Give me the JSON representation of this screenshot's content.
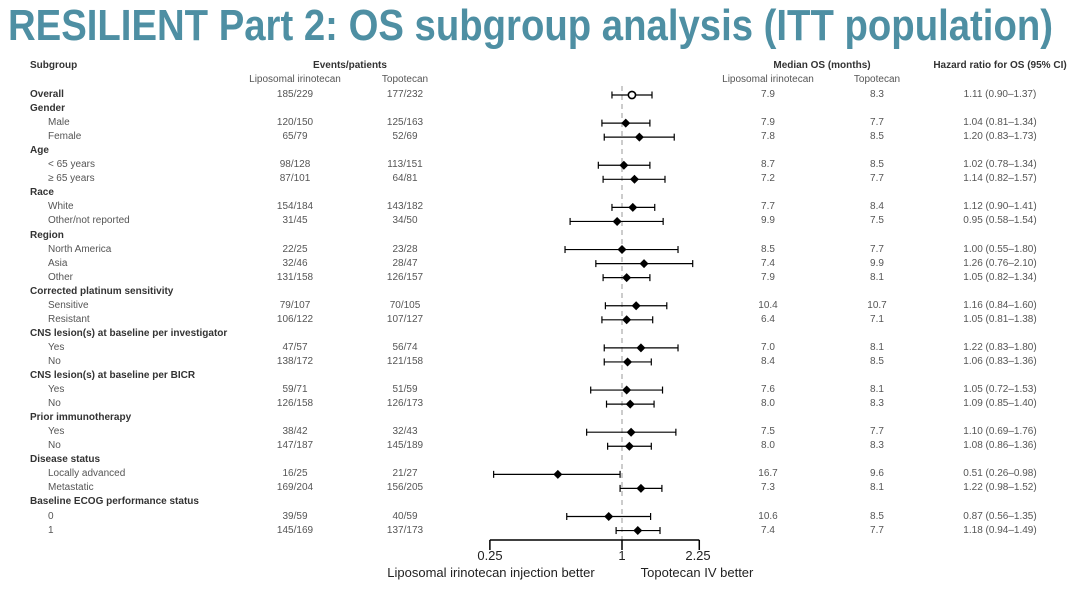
{
  "title": "RESILIENT Part 2: OS subgroup analysis (ITT population)",
  "headers": {
    "subgroup": "Subgroup",
    "events": "Events/patients",
    "events_lipo": "Liposomal irinotecan",
    "events_topo": "Topotecan",
    "median_os": "Median OS (months)",
    "os_lipo": "Liposomal irinotecan",
    "os_topo": "Topotecan",
    "hr": "Hazard ratio for OS (95% CI)"
  },
  "chart_data": {
    "type": "forest",
    "x_scale": "log",
    "xlim": [
      0.25,
      2.25
    ],
    "x_ticks": [
      "0.25",
      "1",
      "2.25"
    ],
    "reference_line": 1,
    "left_label": "Liposomal irinotecan injection better",
    "right_label": "Topotecan IV better",
    "colors": {
      "marker": "#000000",
      "reference": "#999999"
    },
    "rows": [
      {
        "label": "Overall",
        "type": "overall",
        "lipo_events": "185/229",
        "topo_events": "177/232",
        "lipo_os": "7.9",
        "topo_os": "8.3",
        "hr_text": "1.11 (0.90–1.37)",
        "hr": 1.11,
        "lo": 0.9,
        "hi": 1.37,
        "marker": "open-circle"
      },
      {
        "label": "Gender",
        "type": "header"
      },
      {
        "label": "Male",
        "type": "sub",
        "lipo_events": "120/150",
        "topo_events": "125/163",
        "lipo_os": "7.9",
        "topo_os": "7.7",
        "hr_text": "1.04 (0.81–1.34)",
        "hr": 1.04,
        "lo": 0.81,
        "hi": 1.34
      },
      {
        "label": "Female",
        "type": "sub",
        "lipo_events": "65/79",
        "topo_events": "52/69",
        "lipo_os": "7.8",
        "topo_os": "8.5",
        "hr_text": "1.20 (0.83–1.73)",
        "hr": 1.2,
        "lo": 0.83,
        "hi": 1.73
      },
      {
        "label": "Age",
        "type": "header"
      },
      {
        "label": "< 65 years",
        "type": "sub",
        "lipo_events": "98/128",
        "topo_events": "113/151",
        "lipo_os": "8.7",
        "topo_os": "8.5",
        "hr_text": "1.02 (0.78–1.34)",
        "hr": 1.02,
        "lo": 0.78,
        "hi": 1.34
      },
      {
        "label": "≥ 65 years",
        "type": "sub",
        "lipo_events": "87/101",
        "topo_events": "64/81",
        "lipo_os": "7.2",
        "topo_os": "7.7",
        "hr_text": "1.14 (0.82–1.57)",
        "hr": 1.14,
        "lo": 0.82,
        "hi": 1.57
      },
      {
        "label": "Race",
        "type": "header"
      },
      {
        "label": "White",
        "type": "sub",
        "lipo_events": "154/184",
        "topo_events": "143/182",
        "lipo_os": "7.7",
        "topo_os": "8.4",
        "hr_text": "1.12 (0.90–1.41)",
        "hr": 1.12,
        "lo": 0.9,
        "hi": 1.41
      },
      {
        "label": "Other/not reported",
        "type": "sub",
        "lipo_events": "31/45",
        "topo_events": "34/50",
        "lipo_os": "9.9",
        "topo_os": "7.5",
        "hr_text": "0.95 (0.58–1.54)",
        "hr": 0.95,
        "lo": 0.58,
        "hi": 1.54
      },
      {
        "label": "Region",
        "type": "header"
      },
      {
        "label": "North America",
        "type": "sub",
        "lipo_events": "22/25",
        "topo_events": "23/28",
        "lipo_os": "8.5",
        "topo_os": "7.7",
        "hr_text": "1.00 (0.55–1.80)",
        "hr": 1.0,
        "lo": 0.55,
        "hi": 1.8
      },
      {
        "label": "Asia",
        "type": "sub",
        "lipo_events": "32/46",
        "topo_events": "28/47",
        "lipo_os": "7.4",
        "topo_os": "9.9",
        "hr_text": "1.26 (0.76–2.10)",
        "hr": 1.26,
        "lo": 0.76,
        "hi": 2.1
      },
      {
        "label": "Other",
        "type": "sub",
        "lipo_events": "131/158",
        "topo_events": "126/157",
        "lipo_os": "7.9",
        "topo_os": "8.1",
        "hr_text": "1.05 (0.82–1.34)",
        "hr": 1.05,
        "lo": 0.82,
        "hi": 1.34
      },
      {
        "label": "Corrected platinum sensitivity",
        "type": "header"
      },
      {
        "label": "Sensitive",
        "type": "sub",
        "lipo_events": "79/107",
        "topo_events": "70/105",
        "lipo_os": "10.4",
        "topo_os": "10.7",
        "hr_text": "1.16 (0.84–1.60)",
        "hr": 1.16,
        "lo": 0.84,
        "hi": 1.6
      },
      {
        "label": "Resistant",
        "type": "sub",
        "lipo_events": "106/122",
        "topo_events": "107/127",
        "lipo_os": "6.4",
        "topo_os": "7.1",
        "hr_text": "1.05 (0.81–1.38)",
        "hr": 1.05,
        "lo": 0.81,
        "hi": 1.38
      },
      {
        "label": "CNS lesion(s) at baseline per investigator",
        "type": "header"
      },
      {
        "label": "Yes",
        "type": "sub",
        "lipo_events": "47/57",
        "topo_events": "56/74",
        "lipo_os": "7.0",
        "topo_os": "8.1",
        "hr_text": "1.22 (0.83–1.80)",
        "hr": 1.22,
        "lo": 0.83,
        "hi": 1.8
      },
      {
        "label": "No",
        "type": "sub",
        "lipo_events": "138/172",
        "topo_events": "121/158",
        "lipo_os": "8.4",
        "topo_os": "8.5",
        "hr_text": "1.06 (0.83–1.36)",
        "hr": 1.06,
        "lo": 0.83,
        "hi": 1.36
      },
      {
        "label": "CNS lesion(s) at baseline per BICR",
        "type": "header"
      },
      {
        "label": "Yes",
        "type": "sub",
        "lipo_events": "59/71",
        "topo_events": "51/59",
        "lipo_os": "7.6",
        "topo_os": "8.1",
        "hr_text": "1.05 (0.72–1.53)",
        "hr": 1.05,
        "lo": 0.72,
        "hi": 1.53
      },
      {
        "label": "No",
        "type": "sub",
        "lipo_events": "126/158",
        "topo_events": "126/173",
        "lipo_os": "8.0",
        "topo_os": "8.3",
        "hr_text": "1.09 (0.85–1.40)",
        "hr": 1.09,
        "lo": 0.85,
        "hi": 1.4
      },
      {
        "label": "Prior immunotherapy",
        "type": "header"
      },
      {
        "label": "Yes",
        "type": "sub",
        "lipo_events": "38/42",
        "topo_events": "32/43",
        "lipo_os": "7.5",
        "topo_os": "7.7",
        "hr_text": "1.10 (0.69–1.76)",
        "hr": 1.1,
        "lo": 0.69,
        "hi": 1.76
      },
      {
        "label": "No",
        "type": "sub",
        "lipo_events": "147/187",
        "topo_events": "145/189",
        "lipo_os": "8.0",
        "topo_os": "8.3",
        "hr_text": "1.08 (0.86–1.36)",
        "hr": 1.08,
        "lo": 0.86,
        "hi": 1.36
      },
      {
        "label": "Disease status",
        "type": "header"
      },
      {
        "label": "Locally advanced",
        "type": "sub",
        "lipo_events": "16/25",
        "topo_events": "21/27",
        "lipo_os": "16.7",
        "topo_os": "9.6",
        "hr_text": "0.51 (0.26–0.98)",
        "hr": 0.51,
        "lo": 0.26,
        "hi": 0.98
      },
      {
        "label": "Metastatic",
        "type": "sub",
        "lipo_events": "169/204",
        "topo_events": "156/205",
        "lipo_os": "7.3",
        "topo_os": "8.1",
        "hr_text": "1.22 (0.98–1.52)",
        "hr": 1.22,
        "lo": 0.98,
        "hi": 1.52
      },
      {
        "label": "Baseline ECOG performance status",
        "type": "header"
      },
      {
        "label": "0",
        "type": "sub",
        "lipo_events": "39/59",
        "topo_events": "40/59",
        "lipo_os": "10.6",
        "topo_os": "8.5",
        "hr_text": "0.87 (0.56–1.35)",
        "hr": 0.87,
        "lo": 0.56,
        "hi": 1.35
      },
      {
        "label": "1",
        "type": "sub",
        "lipo_events": "145/169",
        "topo_events": "137/173",
        "lipo_os": "7.4",
        "topo_os": "7.7",
        "hr_text": "1.18 (0.94–1.49)",
        "hr": 1.18,
        "lo": 0.94,
        "hi": 1.49
      }
    ]
  }
}
